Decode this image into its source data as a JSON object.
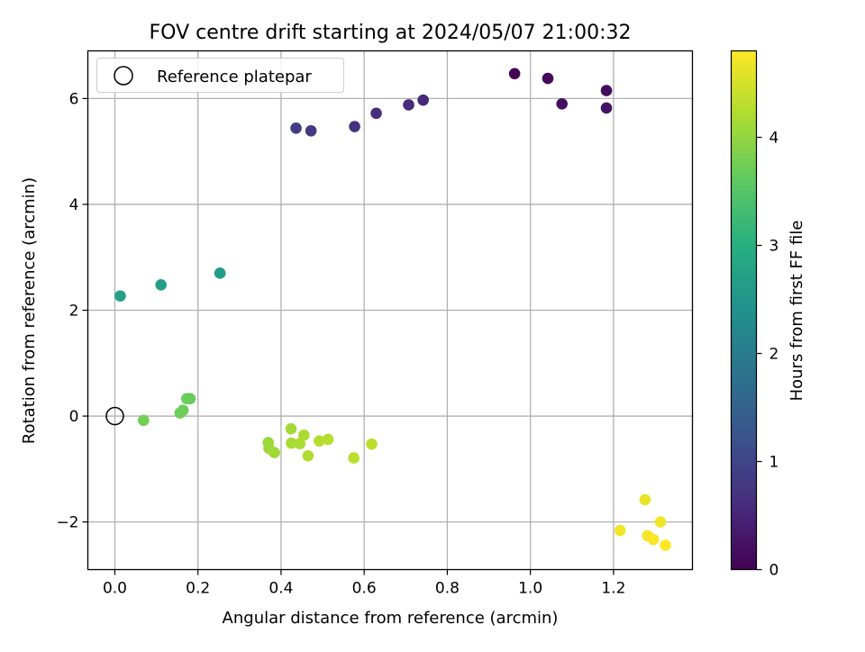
{
  "chart_data": {
    "type": "scatter",
    "title": "FOV centre drift starting at 2024/05/07 21:00:32",
    "xlabel": "Angular distance from reference (arcmin)",
    "ylabel": "Rotation from reference (arcmin)",
    "xlim": [
      -0.065,
      1.39
    ],
    "ylim": [
      -2.9,
      6.9
    ],
    "grid": true,
    "legend": {
      "placement": "top-left",
      "entries": [
        "Reference platepar"
      ]
    },
    "x_ticks": [
      0.0,
      0.2,
      0.4,
      0.6,
      0.8,
      1.0,
      1.2
    ],
    "x_tick_labels": [
      "0.0",
      "0.2",
      "0.4",
      "0.6",
      "0.8",
      "1.0",
      "1.2"
    ],
    "y_ticks": [
      -2,
      0,
      2,
      4,
      6
    ],
    "y_tick_labels": [
      "−2",
      "0",
      "2",
      "4",
      "6"
    ],
    "colorbar": {
      "label": "Hours from first FF file",
      "colormap": "viridis",
      "range": [
        0,
        4.8
      ],
      "ticks": [
        0,
        1,
        2,
        3,
        4
      ],
      "tick_labels": [
        "0",
        "1",
        "2",
        "3",
        "4"
      ]
    },
    "reference_point": {
      "x": 0.0,
      "y": 0.0,
      "label": "Reference platepar"
    },
    "points": [
      {
        "x": 0.962,
        "y": 6.47,
        "hours": 0.05
      },
      {
        "x": 1.042,
        "y": 6.38,
        "hours": 0.1
      },
      {
        "x": 1.183,
        "y": 6.15,
        "hours": 0.15
      },
      {
        "x": 1.076,
        "y": 5.9,
        "hours": 0.2
      },
      {
        "x": 1.183,
        "y": 5.82,
        "hours": 0.25
      },
      {
        "x": 0.742,
        "y": 5.97,
        "hours": 0.55
      },
      {
        "x": 0.707,
        "y": 5.88,
        "hours": 0.6
      },
      {
        "x": 0.629,
        "y": 5.72,
        "hours": 0.65
      },
      {
        "x": 0.577,
        "y": 5.47,
        "hours": 0.7
      },
      {
        "x": 0.472,
        "y": 5.39,
        "hours": 0.8
      },
      {
        "x": 0.436,
        "y": 5.44,
        "hours": 0.85
      },
      {
        "x": 0.253,
        "y": 2.7,
        "hours": 2.6
      },
      {
        "x": 0.111,
        "y": 2.48,
        "hours": 2.65
      },
      {
        "x": 0.013,
        "y": 2.27,
        "hours": 2.7
      },
      {
        "x": 0.181,
        "y": 0.33,
        "hours": 3.65
      },
      {
        "x": 0.173,
        "y": 0.33,
        "hours": 3.68
      },
      {
        "x": 0.164,
        "y": 0.11,
        "hours": 3.7
      },
      {
        "x": 0.157,
        "y": 0.06,
        "hours": 3.72
      },
      {
        "x": 0.069,
        "y": -0.08,
        "hours": 3.75
      },
      {
        "x": 0.369,
        "y": -0.5,
        "hours": 4.05
      },
      {
        "x": 0.371,
        "y": -0.61,
        "hours": 4.08
      },
      {
        "x": 0.384,
        "y": -0.69,
        "hours": 4.1
      },
      {
        "x": 0.424,
        "y": -0.24,
        "hours": 4.12
      },
      {
        "x": 0.425,
        "y": -0.51,
        "hours": 4.15
      },
      {
        "x": 0.445,
        "y": -0.52,
        "hours": 4.17
      },
      {
        "x": 0.455,
        "y": -0.36,
        "hours": 4.2
      },
      {
        "x": 0.465,
        "y": -0.75,
        "hours": 4.22
      },
      {
        "x": 0.492,
        "y": -0.47,
        "hours": 4.25
      },
      {
        "x": 0.513,
        "y": -0.44,
        "hours": 4.27
      },
      {
        "x": 0.575,
        "y": -0.79,
        "hours": 4.3
      },
      {
        "x": 0.618,
        "y": -0.53,
        "hours": 4.32
      },
      {
        "x": 1.276,
        "y": -1.58,
        "hours": 4.65
      },
      {
        "x": 1.313,
        "y": -2.0,
        "hours": 4.7
      },
      {
        "x": 1.216,
        "y": -2.16,
        "hours": 4.72
      },
      {
        "x": 1.282,
        "y": -2.26,
        "hours": 4.75
      },
      {
        "x": 1.296,
        "y": -2.33,
        "hours": 4.77
      },
      {
        "x": 1.325,
        "y": -2.44,
        "hours": 4.8
      }
    ]
  }
}
